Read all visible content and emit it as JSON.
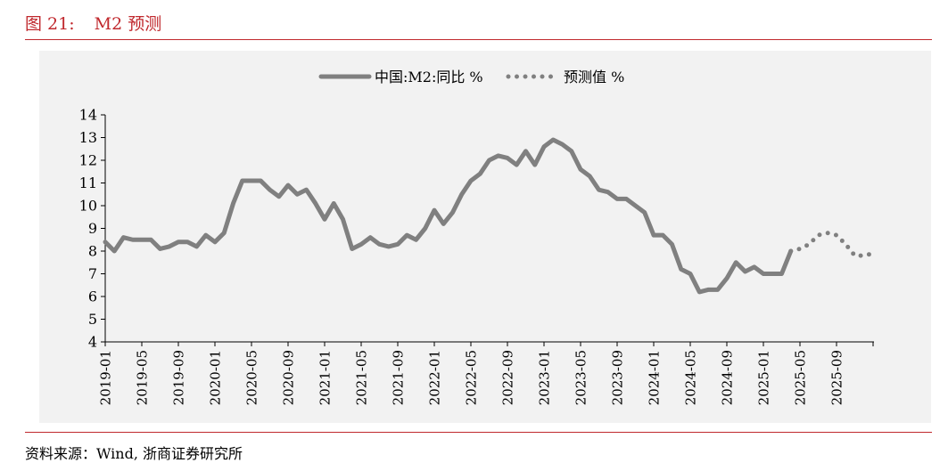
{
  "figure": {
    "number": "图 21:",
    "title": "M2 预测"
  },
  "source_note": "资料来源：Wind, 浙商证券研究所",
  "colors": {
    "accent": "#c0282d",
    "line": "#808080",
    "axis": "#000000",
    "panel_bg": "#f2f2f2"
  },
  "chart_data": {
    "type": "line",
    "title": "",
    "xlabel": "",
    "ylabel": "",
    "ylim": [
      4,
      14
    ],
    "yticks": [
      4,
      5,
      6,
      7,
      8,
      9,
      10,
      11,
      12,
      13,
      14
    ],
    "grid": false,
    "legend": "top-center",
    "x_tick_labels": [
      "2019-01",
      "2019-05",
      "2019-09",
      "2020-01",
      "2020-05",
      "2020-09",
      "2021-01",
      "2021-05",
      "2021-09",
      "2022-01",
      "2022-05",
      "2022-09",
      "2023-01",
      "2023-05",
      "2023-09",
      "2024-01",
      "2024-05",
      "2024-09",
      "2025-01",
      "2025-05",
      "2025-09"
    ],
    "series": [
      {
        "name": "中国:M2:同比 %",
        "style": "solid",
        "start": "2019-01",
        "values": [
          8.4,
          8.0,
          8.6,
          8.5,
          8.5,
          8.5,
          8.1,
          8.2,
          8.4,
          8.4,
          8.2,
          8.7,
          8.4,
          8.8,
          10.1,
          11.1,
          11.1,
          11.1,
          10.7,
          10.4,
          10.9,
          10.5,
          10.7,
          10.1,
          9.4,
          10.1,
          9.4,
          8.1,
          8.3,
          8.6,
          8.3,
          8.2,
          8.3,
          8.7,
          8.5,
          9.0,
          9.8,
          9.2,
          9.7,
          10.5,
          11.1,
          11.4,
          12.0,
          12.2,
          12.1,
          11.8,
          12.4,
          11.8,
          12.6,
          12.9,
          12.7,
          12.4,
          11.6,
          11.3,
          10.7,
          10.6,
          10.3,
          10.3,
          10.0,
          9.7,
          8.7,
          8.7,
          8.3,
          7.2,
          7.0,
          6.2,
          6.3,
          6.3,
          6.8,
          7.5,
          7.1,
          7.3,
          7.0,
          7.0,
          7.0,
          8.0
        ]
      },
      {
        "name": "预测值 %",
        "style": "dotted",
        "start": "2025-04",
        "values": [
          8.0,
          8.1,
          8.3,
          8.7,
          8.8,
          8.7,
          8.3,
          7.8,
          7.8,
          7.9
        ]
      }
    ]
  }
}
